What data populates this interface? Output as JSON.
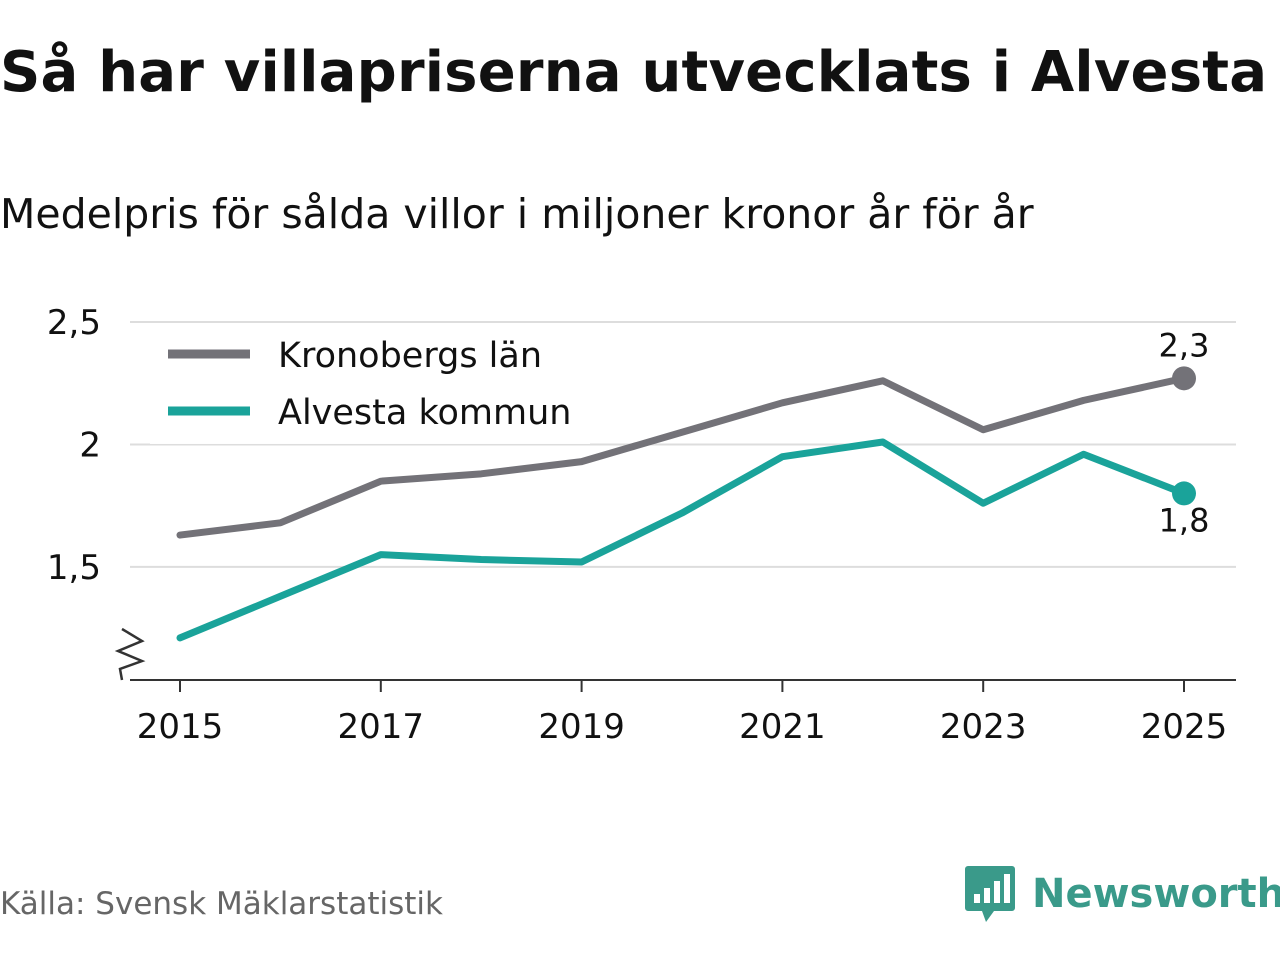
{
  "title": "Så har villapriserna utvecklats i Alvesta",
  "subtitle": "Medelpris för sålda villor i miljoner kronor år för år",
  "source": "Källa: Svensk Mäklarstatistik",
  "brand": {
    "name": "Newsworthy",
    "icon": "newsworthy-logo-icon",
    "color": "#3a9a8a"
  },
  "colors": {
    "kronoberg": "#737278",
    "alvesta": "#1aa39a",
    "grid": "#dddddd",
    "axis": "#333333"
  },
  "chart_data": {
    "type": "line",
    "title": "Så har villapriserna utvecklats i Alvesta",
    "subtitle": "Medelpris för sålda villor i miljoner kronor år för år",
    "xlabel": "",
    "ylabel": "",
    "x": [
      2015,
      2016,
      2017,
      2018,
      2019,
      2020,
      2021,
      2022,
      2023,
      2024,
      2025
    ],
    "xticks": [
      "2015",
      "2017",
      "2019",
      "2021",
      "2023",
      "2025"
    ],
    "yticks": [
      1.5,
      2,
      2.5
    ],
    "ytick_labels": [
      "1,5",
      "2",
      "2,5"
    ],
    "ylim": [
      1.03,
      2.5
    ],
    "y_axis_break": true,
    "grid": true,
    "legend_position": "top-left",
    "series": [
      {
        "name": "Kronobergs län",
        "color": "#737278",
        "values": [
          1.63,
          1.68,
          1.85,
          1.88,
          1.93,
          2.05,
          2.17,
          2.26,
          2.06,
          2.18,
          2.27
        ],
        "end_label": "2,3"
      },
      {
        "name": "Alvesta kommun",
        "color": "#1aa39a",
        "values": [
          1.21,
          1.38,
          1.55,
          1.53,
          1.52,
          1.72,
          1.95,
          2.01,
          1.76,
          1.96,
          1.8
        ],
        "end_label": "1,8"
      }
    ]
  }
}
